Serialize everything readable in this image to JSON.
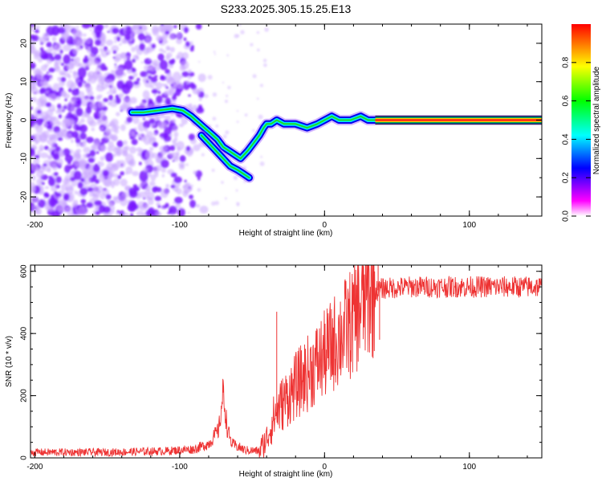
{
  "title": "S233.2025.305.15.25.E13",
  "chart_data": [
    {
      "type": "heatmap",
      "xlabel": "Height of straight line (km)",
      "ylabel": "Frequency (Hz)",
      "xlim": [
        -203,
        150
      ],
      "ylim": [
        -25,
        25
      ],
      "x_ticks": [
        -200,
        -100,
        0,
        100
      ],
      "y_ticks": [
        20,
        10,
        0,
        -10,
        -20
      ],
      "colorbar": {
        "label": "Normalized spectral amplitude",
        "range": [
          0.0,
          1.0
        ],
        "ticks": [
          "0.0",
          "0.2",
          "0.4",
          "0.6",
          "0.8"
        ],
        "tick_values": [
          0,
          0.2,
          0.4,
          0.6,
          0.8
        ],
        "colors": [
          "#ffffff",
          "#ff00ff",
          "#0000ff",
          "#00ffff",
          "#00ff00",
          "#ffff00",
          "#ff0000"
        ]
      },
      "ridge": {
        "x": [
          -133,
          -125,
          -115,
          -105,
          -98,
          -92,
          -86,
          -80,
          -74,
          -70,
          -66,
          -62,
          -58,
          -53,
          -49,
          -45,
          -42,
          -40,
          -37,
          -33,
          -28,
          -20,
          -12,
          -5,
          0,
          5,
          10,
          18,
          25,
          30,
          35,
          150
        ],
        "freq": [
          2,
          2,
          2.5,
          3,
          2.5,
          1,
          -1,
          -3,
          -5,
          -7,
          -8,
          -9,
          -10,
          -8,
          -6,
          -4,
          -2,
          -1,
          -1,
          0,
          -1,
          -1,
          -2,
          -1,
          0,
          1,
          0,
          0,
          1,
          0,
          0,
          0
        ]
      },
      "branch": {
        "x": [
          -85,
          -80,
          -75,
          -70,
          -65,
          -60,
          -56,
          -52
        ],
        "freq": [
          -4,
          -6,
          -8,
          -10,
          -12,
          -13,
          -14,
          -15
        ]
      },
      "noise_region_x": [
        -203,
        -90
      ],
      "steady_line": {
        "x_start": 35,
        "freq": 0
      }
    },
    {
      "type": "line",
      "xlabel": "Height of straight line (km)",
      "ylabel": "SNR (10 * v/v)",
      "xlim": [
        -203,
        150
      ],
      "ylim": [
        0,
        620
      ],
      "x_ticks": [
        -200,
        -100,
        0,
        100
      ],
      "y_ticks": [
        0,
        200,
        400,
        600
      ],
      "color": "#ee3333",
      "envelope": {
        "x": [
          -203,
          -150,
          -110,
          -90,
          -80,
          -73,
          -70,
          -67,
          -64,
          -55,
          -45,
          -40,
          -35,
          -30,
          -20,
          -10,
          0,
          10,
          20,
          25,
          30,
          35,
          40,
          60,
          100,
          150
        ],
        "y": [
          18,
          18,
          22,
          28,
          45,
          90,
          210,
          90,
          45,
          25,
          22,
          60,
          130,
          170,
          230,
          280,
          330,
          390,
          440,
          490,
          520,
          535,
          545,
          550,
          550,
          550
        ]
      },
      "spikes": [
        {
          "x": -70,
          "y": 250
        },
        {
          "x": -33,
          "y": 470
        },
        {
          "x": 37,
          "y": 620
        },
        {
          "x": 38,
          "y": 380
        }
      ]
    }
  ]
}
